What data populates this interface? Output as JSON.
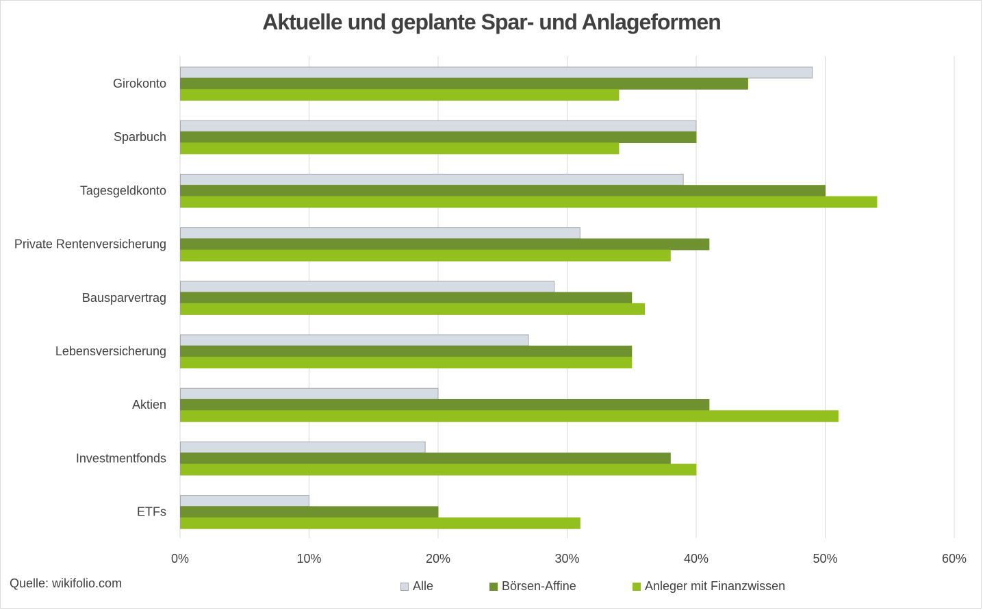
{
  "chart_data": {
    "type": "bar",
    "orientation": "horizontal",
    "title": "Aktuelle und geplante Spar- und Anlageformen",
    "categories": [
      "Girokonto",
      "Sparbuch",
      "Tagesgeldkonto",
      "Private Rentenversicherung",
      "Bausparvertrag",
      "Lebensversicherung",
      "Aktien",
      "Investmentfonds",
      "ETFs"
    ],
    "series": [
      {
        "name": "Alle",
        "color": "#d6dce4",
        "border": "#a6a6a6",
        "values": [
          49,
          40,
          39,
          31,
          29,
          27,
          20,
          19,
          10
        ]
      },
      {
        "name": "Börsen-Affine",
        "color": "#6f9130",
        "border": "#6f9130",
        "values": [
          44,
          40,
          50,
          41,
          35,
          35,
          41,
          38,
          20
        ]
      },
      {
        "name": "Anleger mit Finanzwissen",
        "color": "#93c01f",
        "border": "#93c01f",
        "values": [
          34,
          34,
          54,
          38,
          36,
          35,
          51,
          40,
          31
        ]
      }
    ],
    "x_ticks": [
      "0%",
      "10%",
      "20%",
      "30%",
      "40%",
      "50%",
      "60%"
    ],
    "xlim": [
      0,
      60
    ],
    "grid": true,
    "legend_position": "bottom"
  },
  "source": "Quelle: wikifolio.com"
}
